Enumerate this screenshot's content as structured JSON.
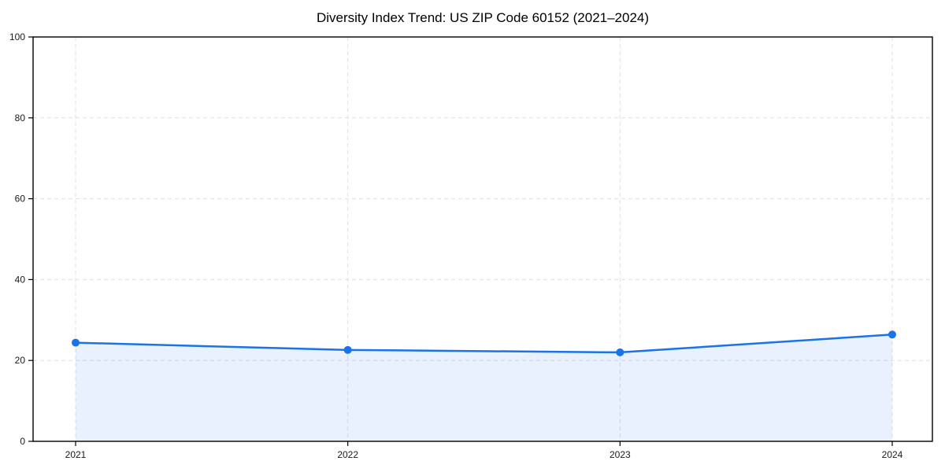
{
  "chart_data": {
    "type": "area",
    "title": "Diversity Index Trend: US ZIP Code 60152 (2021–2024)",
    "x": [
      "2021",
      "2022",
      "2023",
      "2024"
    ],
    "series": [
      {
        "name": "Diversity Index",
        "values": [
          24.4,
          22.6,
          22.0,
          26.4
        ]
      }
    ],
    "xlabel": "",
    "ylabel": "",
    "ylim": [
      0,
      100
    ],
    "yticks": [
      0,
      20,
      40,
      60,
      80,
      100
    ],
    "grid": "dashed-both-axes",
    "legend_position": "none",
    "colors": {
      "line": "#1a73e8",
      "marker": "#1a73e8",
      "fill": "#1a73e8",
      "fill_opacity": 0.1,
      "gridline": "#e0e0e0",
      "spine": "#000000",
      "tick_label": "#1a1a1a"
    }
  }
}
